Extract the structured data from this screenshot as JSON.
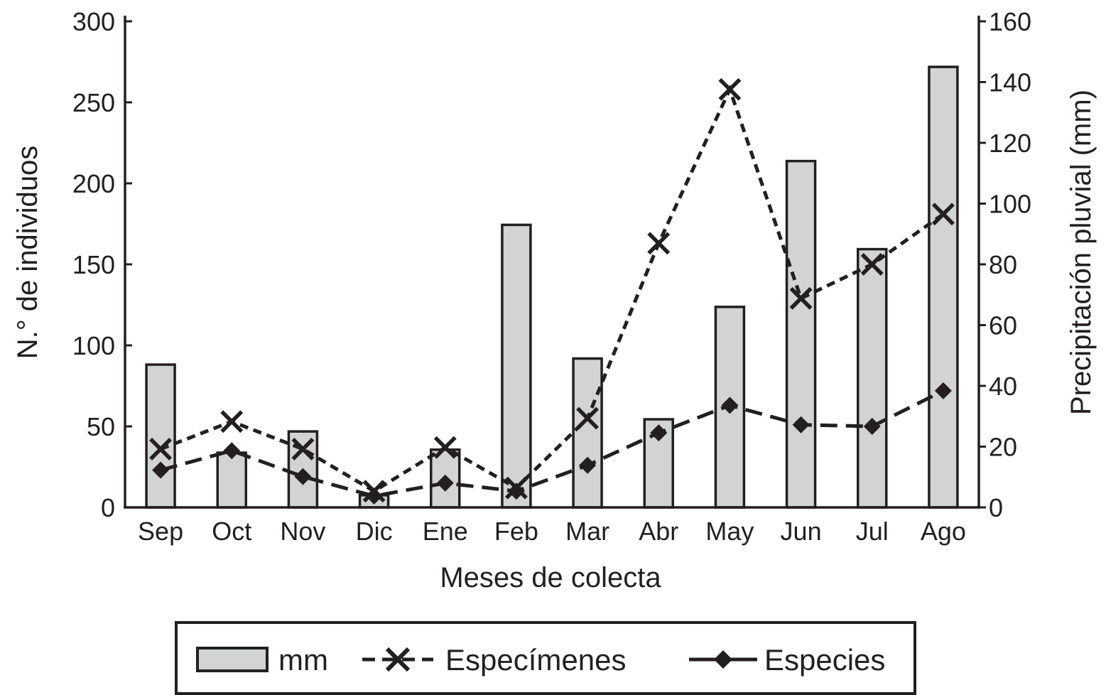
{
  "chart_data": {
    "type": "bar",
    "categories": [
      "Sep",
      "Oct",
      "Nov",
      "Dic",
      "Ene",
      "Feb",
      "Mar",
      "Abr",
      "May",
      "Jun",
      "Jul",
      "Ago"
    ],
    "xlabel": "Meses de colecta",
    "ylabel": "N.° de individuos",
    "y2label": "Precipitación pluvial (mm)",
    "ylim": [
      0,
      300
    ],
    "y2lim": [
      0,
      160
    ],
    "yticks": [
      "0",
      "50",
      "100",
      "150",
      "200",
      "250",
      "300"
    ],
    "y2ticks": [
      "0",
      "20",
      "40",
      "60",
      "80",
      "100",
      "120",
      "140",
      "160"
    ],
    "grid": false,
    "legend_position": "bottom",
    "series": [
      {
        "name": "mm",
        "type": "bar",
        "axis": "right",
        "values": [
          47,
          18,
          25,
          4,
          19,
          93,
          49,
          29,
          66,
          114,
          85,
          145
        ],
        "color": "#d1d3d4"
      },
      {
        "name": "Especímenes",
        "type": "line",
        "axis": "left",
        "marker": "x",
        "dash": "short",
        "values": [
          36,
          53,
          36,
          10,
          37,
          12,
          55,
          163,
          258,
          129,
          150,
          181
        ],
        "color": "#231f20"
      },
      {
        "name": "Especies",
        "type": "line",
        "axis": "left",
        "marker": "diamond",
        "dash": "long",
        "values": [
          23,
          35,
          19,
          7,
          15,
          10,
          26,
          46,
          63,
          51,
          50,
          72
        ],
        "color": "#231f20"
      }
    ]
  }
}
